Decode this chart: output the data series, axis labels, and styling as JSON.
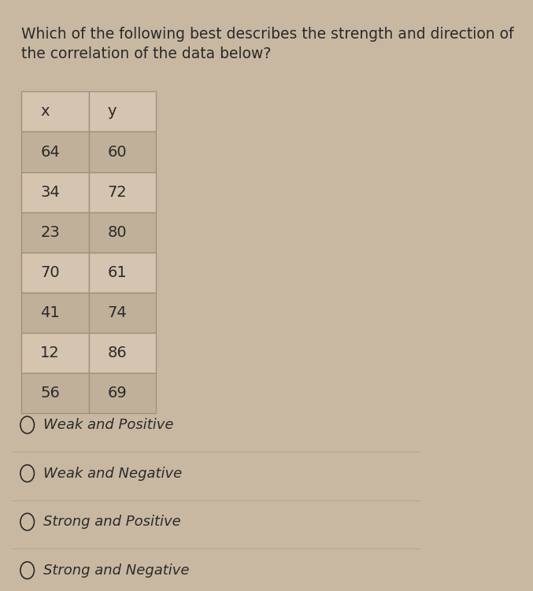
{
  "title_line1": "Which of the following best describes the strength and direction of",
  "title_line2": "the correlation of the data below?",
  "table_headers": [
    "x",
    "y"
  ],
  "table_data": [
    [
      64,
      60
    ],
    [
      34,
      72
    ],
    [
      23,
      80
    ],
    [
      70,
      61
    ],
    [
      41,
      74
    ],
    [
      12,
      86
    ],
    [
      56,
      69
    ]
  ],
  "options": [
    "Weak and Positive",
    "Weak and Negative",
    "Strong and Positive",
    "Strong and Negative"
  ],
  "bg_color": "#c8b8a2",
  "table_bg_light": "#d4c4b0",
  "table_bg_dark": "#c0b09a",
  "table_border_color": "#a09080",
  "separator_color": "#b0a090",
  "text_color": "#2a2a2a",
  "title_fontsize": 13.5,
  "table_fontsize": 14,
  "option_fontsize": 13
}
